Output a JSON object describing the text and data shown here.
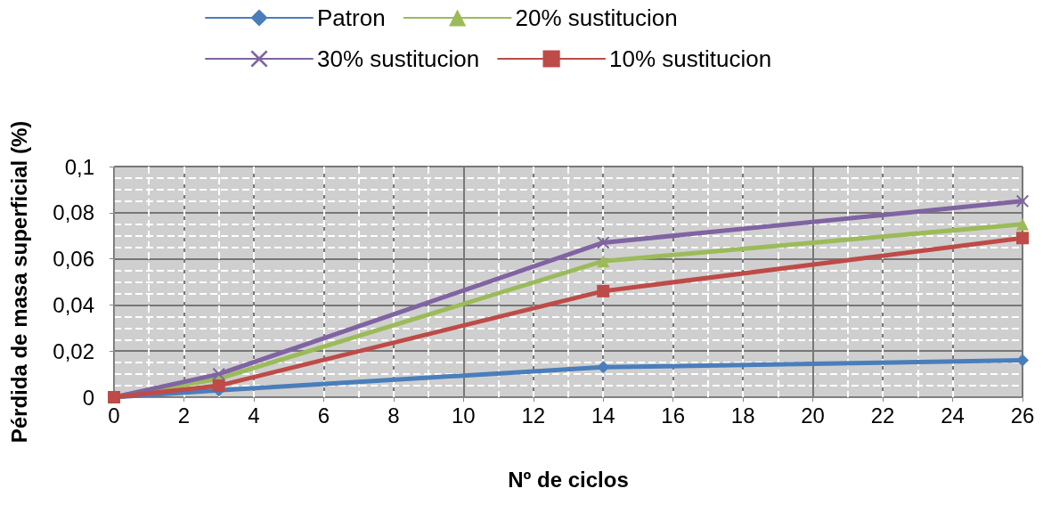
{
  "chart_data": {
    "type": "line",
    "xlabel": "Nº de ciclos",
    "ylabel": "Pérdida de masa superficial (%)",
    "xlim": [
      0,
      26
    ],
    "xticks": [
      0,
      2,
      4,
      6,
      8,
      10,
      12,
      14,
      16,
      18,
      20,
      22,
      24,
      26
    ],
    "ylim": [
      0,
      0.1
    ],
    "yticks": [
      0,
      {
        "value": 0.02,
        "label": "0,02"
      },
      {
        "value": 0.04,
        "label": "0,04"
      },
      {
        "value": 0.06,
        "label": "0,06"
      },
      {
        "value": 0.08,
        "label": "0,08"
      },
      {
        "value": 0.1,
        "label": "0,1"
      }
    ],
    "grid": true,
    "legend": "top",
    "line_style": "solid",
    "series": [
      {
        "name": "Patron",
        "color": "#4a7ebb",
        "marker": "diamond",
        "x": [
          0,
          3,
          14,
          26
        ],
        "values": [
          0,
          0.003,
          0.013,
          0.016
        ]
      },
      {
        "name": "20% sustitucion",
        "color": "#9bbb59",
        "marker": "triangle",
        "x": [
          0,
          3,
          14,
          26
        ],
        "values": [
          0,
          0.008,
          0.059,
          0.075
        ]
      },
      {
        "name": "30% sustitucion",
        "color": "#8064a2",
        "marker": "cross",
        "x": [
          0,
          3,
          14,
          26
        ],
        "values": [
          0,
          0.01,
          0.067,
          0.085
        ]
      },
      {
        "name": "10% sustitucion",
        "color": "#be4b48",
        "marker": "square",
        "x": [
          0,
          3,
          14,
          26
        ],
        "values": [
          0,
          0.005,
          0.046,
          0.069
        ]
      }
    ]
  }
}
